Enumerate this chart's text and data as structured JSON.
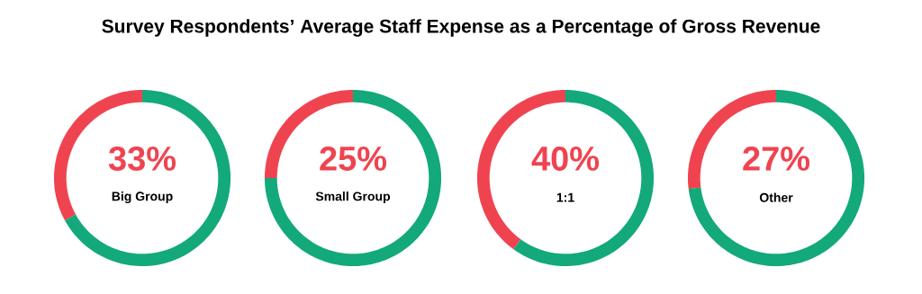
{
  "chart_data": [
    {
      "type": "donut",
      "title": "Big Group",
      "categories": [
        null,
        null
      ],
      "values": [
        33,
        67
      ],
      "colors": [
        "#ef4450",
        "#13a97a"
      ],
      "value_labels": [
        "33%",
        null
      ],
      "annotations": [
        "Survey Respondents’ Average Staff Expense as a Percentage of Gross Revenue"
      ]
    },
    {
      "type": "donut",
      "title": "Small Group",
      "categories": [
        null,
        null
      ],
      "values": [
        25,
        75
      ],
      "colors": [
        "#ef4450",
        "#13a97a"
      ],
      "value_labels": [
        "25%",
        null
      ]
    },
    {
      "type": "donut",
      "title": "1:1",
      "categories": [
        null,
        null
      ],
      "values": [
        40,
        60
      ],
      "colors": [
        "#ef4450",
        "#13a97a"
      ],
      "value_labels": [
        "40%",
        null
      ]
    },
    {
      "type": "donut",
      "title": "Other",
      "categories": [
        null,
        null
      ],
      "values": [
        27,
        73
      ],
      "colors": [
        "#ef4450",
        "#13a97a"
      ],
      "value_labels": [
        "27%",
        null
      ]
    }
  ]
}
